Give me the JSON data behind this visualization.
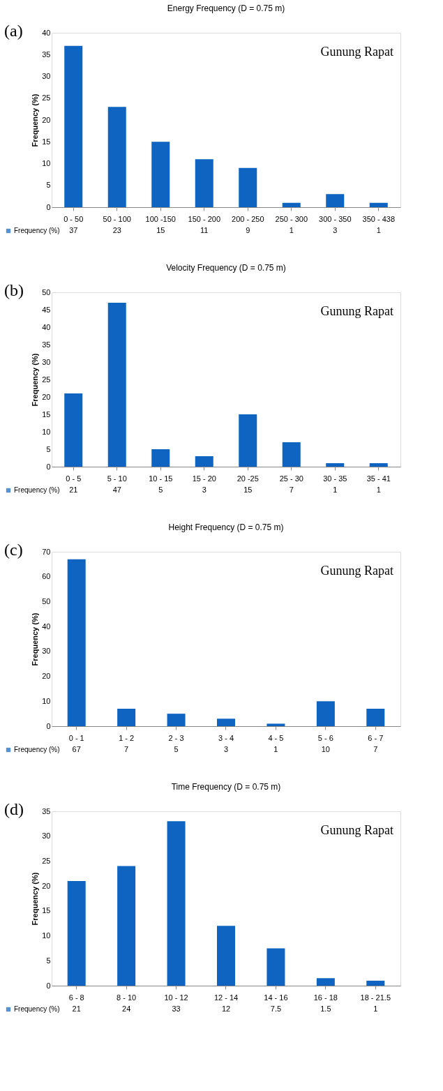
{
  "chart_data": [
    {
      "type": "bar",
      "title": "Energy Frequency (D = 0.75 m)",
      "ylabel": "Frequency (%)",
      "annotations": [
        "(a)",
        "Gunung Rapat"
      ],
      "categories": [
        "0 - 50",
        "50 - 100",
        "100 -150",
        "150 - 200",
        "200 - 250",
        "250 - 300",
        "300 - 350",
        "350 - 438"
      ],
      "series": [
        {
          "name": "Frequency (%)",
          "color": "#0e64c0",
          "values": [
            37,
            23,
            15,
            11,
            9,
            1,
            3,
            1
          ]
        }
      ],
      "ylim": [
        0,
        40
      ],
      "yticks": [
        0,
        5,
        10,
        15,
        20,
        25,
        30,
        35,
        40
      ],
      "data_labels": true,
      "legend": "bottom left"
    },
    {
      "type": "bar",
      "title": "Velocity Frequency (D = 0.75 m)",
      "ylabel": "Frequency (%)",
      "annotations": [
        "(b)",
        "Gunung Rapat"
      ],
      "categories": [
        "0 - 5",
        "5 - 10",
        "10 - 15",
        "15 - 20",
        "20 -25",
        "25 - 30",
        "30 - 35",
        "35 - 41"
      ],
      "series": [
        {
          "name": "Frequency (%)",
          "color": "#0e64c0",
          "values": [
            21,
            47,
            5,
            3,
            15,
            7,
            1,
            1
          ]
        }
      ],
      "ylim": [
        0,
        50
      ],
      "yticks": [
        0,
        5,
        10,
        15,
        20,
        25,
        30,
        35,
        40,
        45,
        50
      ],
      "data_labels": true,
      "legend": "bottom left"
    },
    {
      "type": "bar",
      "title": "Height Frequency (D = 0.75 m)",
      "ylabel": "Frequency (%)",
      "annotations": [
        "(c)",
        "Gunung Rapat"
      ],
      "categories": [
        "0 - 1",
        "1 - 2",
        "2 - 3",
        "3 - 4",
        "4 - 5",
        "5 - 6",
        "6 - 7"
      ],
      "series": [
        {
          "name": "Frequency (%)",
          "color": "#0e64c0",
          "values": [
            67,
            7,
            5,
            3,
            1,
            10,
            7
          ]
        }
      ],
      "ylim": [
        0,
        70
      ],
      "yticks": [
        0,
        10,
        20,
        30,
        40,
        50,
        60,
        70
      ],
      "data_labels": true,
      "legend": "bottom left"
    },
    {
      "type": "bar",
      "title": "Time Frequency (D = 0.75 m)",
      "ylabel": "Frequency (%)",
      "annotations": [
        "(d)",
        "Gunung Rapat"
      ],
      "categories": [
        "6 - 8",
        "8 - 10",
        "10 - 12",
        "12 - 14",
        "14 - 16",
        "16 - 18",
        "18 - 21.5"
      ],
      "series": [
        {
          "name": "Frequency (%)",
          "color": "#0e64c0",
          "values": [
            21,
            24,
            33,
            12,
            7.5,
            1.5,
            1
          ]
        }
      ],
      "ylim": [
        0,
        35
      ],
      "yticks": [
        0,
        5,
        10,
        15,
        20,
        25,
        30,
        35
      ],
      "data_labels": true,
      "legend": "bottom left"
    }
  ]
}
